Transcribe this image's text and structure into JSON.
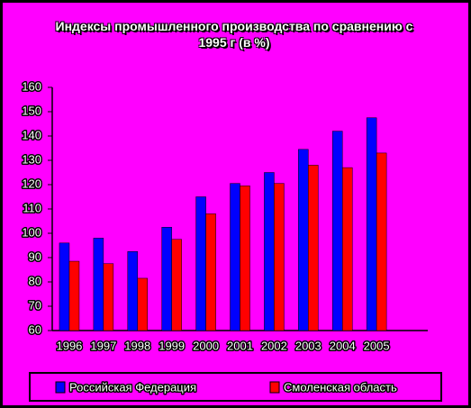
{
  "chart_data": {
    "type": "bar",
    "title": "Индексы промышленного производства по сравнению с 1995 г (в %)",
    "categories": [
      "1996",
      "1997",
      "1998",
      "1999",
      "2000",
      "2001",
      "2002",
      "2003",
      "2004",
      "2005",
      null
    ],
    "series": [
      {
        "name": "Российская Федерация",
        "color": "#0000ff",
        "values": [
          96,
          98,
          92.5,
          102.5,
          115,
          120.5,
          125,
          134.5,
          142,
          147.5,
          null
        ]
      },
      {
        "name": "Смоленская область",
        "color": "#ff0000",
        "values": [
          88.5,
          87.5,
          81.5,
          97.5,
          108,
          119.5,
          120.5,
          128,
          127,
          133,
          null
        ]
      }
    ],
    "ylim": [
      60,
      160
    ],
    "yticks": [
      60,
      70,
      80,
      90,
      100,
      110,
      120,
      130,
      140,
      150,
      160
    ],
    "grid": false,
    "legend": "bottom"
  }
}
